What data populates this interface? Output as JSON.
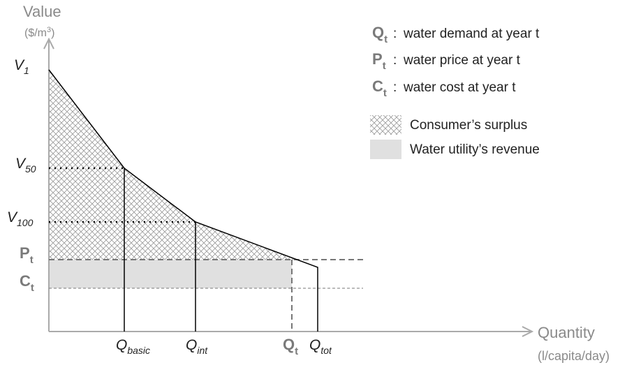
{
  "axes": {
    "y_label": "Value",
    "y_unit": {
      "pre": "($/m",
      "sup": "3",
      "post": ")"
    },
    "x_label": "Quantity",
    "x_unit": "(l/capita/day)"
  },
  "y_labels": [
    {
      "main": "V",
      "sub": "1"
    },
    {
      "main": "V",
      "sub": "50"
    },
    {
      "main": "V",
      "sub": "100"
    },
    {
      "main": "P",
      "sub": "t"
    },
    {
      "main": "C",
      "sub": "t"
    }
  ],
  "x_labels": [
    {
      "main": "Q",
      "sub": "basic"
    },
    {
      "main": "Q",
      "sub": "int"
    },
    {
      "main": "Q",
      "sub": "t"
    },
    {
      "main": "Q",
      "sub": "tot"
    }
  ],
  "legend": {
    "definitions": [
      {
        "symbol": {
          "main": "Q",
          "sub": "t"
        },
        "sep": ":",
        "text": "water demand at year t"
      },
      {
        "symbol": {
          "main": "P",
          "sub": "t"
        },
        "sep": ":",
        "text": "water price at year t"
      },
      {
        "symbol": {
          "main": "C",
          "sub": "t"
        },
        "sep": ":",
        "text": "water cost at year t"
      }
    ],
    "areas": [
      "Consumer’s surplus",
      "Water utility’s revenue"
    ]
  }
}
